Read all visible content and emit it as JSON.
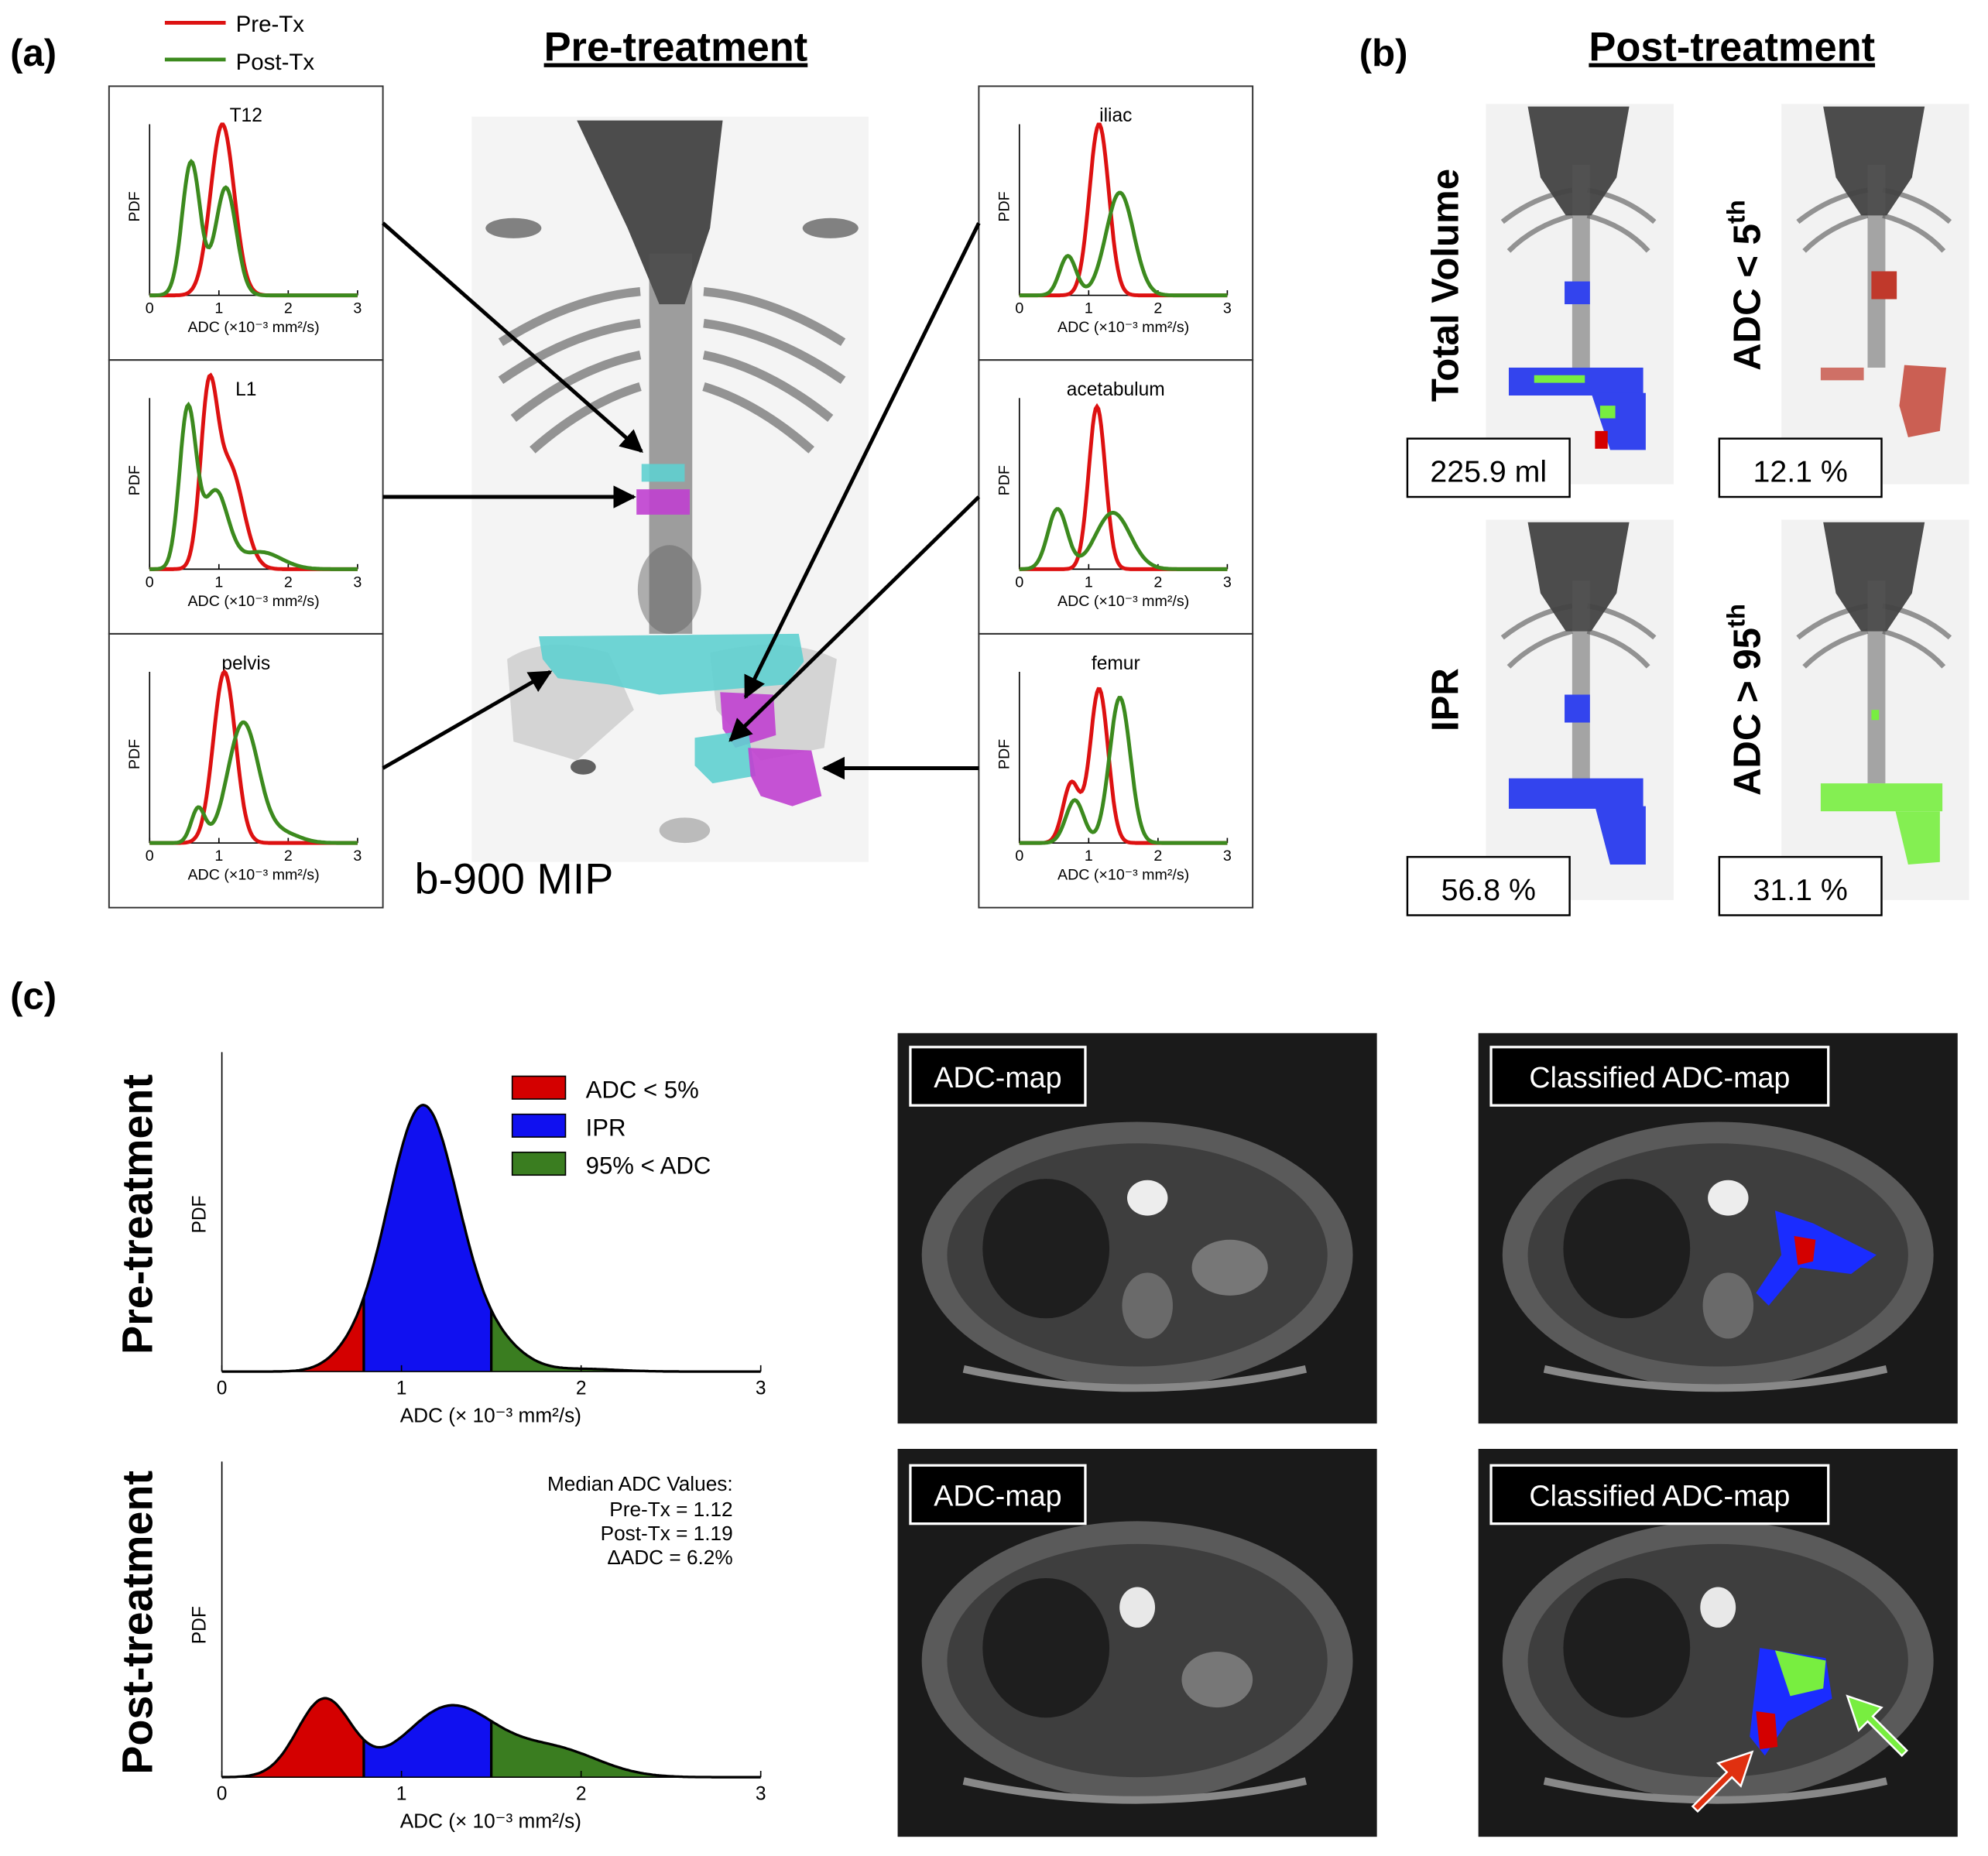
{
  "colors": {
    "pre": "#dd1111",
    "post": "#3c8a1e",
    "ipr": "#1010f0",
    "low": "#d40000",
    "high": "#3a7d20",
    "cyan": "#5fd0d0",
    "magenta": "#c040d0",
    "lime": "#78ee40"
  },
  "panel_labels": {
    "a": "(a)",
    "b": "(b)",
    "c": "(c)"
  },
  "headings": {
    "pre": "Pre-treatment",
    "post": "Post-treatment"
  },
  "legend_a": {
    "pre": "Pre-Tx",
    "post": "Post-Tx"
  },
  "axis": {
    "pdf": "PDF",
    "adc_small": "ADC (×10⁻³ mm²/s)",
    "adc_large": "ADC (× 10⁻³ mm²/s)",
    "ticks": [
      "0",
      "1",
      "2",
      "3"
    ]
  },
  "mip_label": "b-900 MIP",
  "panel_b": {
    "total_volume_label": "Total Volume",
    "total_volume_value": "225.9 ml",
    "adc_low_label": "ADC < 5",
    "adc_low_sup": "th",
    "adc_low_value": "12.1 %",
    "ipr_label": "IPR",
    "ipr_value": "56.8 %",
    "adc_high_label": "ADC > 95",
    "adc_high_sup": "th",
    "adc_high_value": "31.1 %"
  },
  "panel_c": {
    "row_pre": "Pre-treatment",
    "row_post": "Post-treatment",
    "legend": [
      "ADC < 5%",
      "IPR",
      "95% < ADC"
    ],
    "median_title": "Median ADC Values:",
    "median_pre": "Pre-Tx = 1.12",
    "median_post": "Post-Tx = 1.19",
    "median_delta": "ΔADC = 6.2%",
    "tag_adc": "ADC-map",
    "tag_classified": "Classified ADC-map"
  },
  "chart_data": [
    {
      "type": "line",
      "title": "T12",
      "xlabel": "ADC (×10⁻³ mm²/s)",
      "ylabel": "PDF",
      "xlim": [
        0,
        3
      ],
      "series": [
        {
          "name": "Pre-Tx",
          "peaks": [
            [
              1.05,
              0.17,
              1.0
            ]
          ]
        },
        {
          "name": "Post-Tx",
          "peaks": [
            [
              0.6,
              0.13,
              0.78
            ],
            [
              1.1,
              0.15,
              0.63
            ]
          ]
        }
      ]
    },
    {
      "type": "line",
      "title": "L1",
      "xlabel": "ADC (×10⁻³ mm²/s)",
      "ylabel": "PDF",
      "xlim": [
        0,
        3
      ],
      "series": [
        {
          "name": "Pre-Tx",
          "peaks": [
            [
              0.85,
              0.12,
              0.92
            ],
            [
              1.15,
              0.2,
              0.6
            ]
          ]
        },
        {
          "name": "Post-Tx",
          "peaks": [
            [
              0.55,
              0.12,
              0.92
            ],
            [
              0.95,
              0.18,
              0.45
            ],
            [
              1.6,
              0.3,
              0.1
            ]
          ]
        }
      ]
    },
    {
      "type": "line",
      "title": "pelvis",
      "xlabel": "ADC (×10⁻³ mm²/s)",
      "ylabel": "PDF",
      "xlim": [
        0,
        3
      ],
      "series": [
        {
          "name": "Pre-Tx",
          "peaks": [
            [
              1.08,
              0.16,
              1.0
            ]
          ]
        },
        {
          "name": "Post-Tx",
          "peaks": [
            [
              0.7,
              0.1,
              0.2
            ],
            [
              1.35,
              0.22,
              0.7
            ],
            [
              1.9,
              0.25,
              0.06
            ]
          ]
        }
      ]
    },
    {
      "type": "line",
      "title": "iliac",
      "xlabel": "ADC (×10⁻³ mm²/s)",
      "ylabel": "PDF",
      "xlim": [
        0,
        3
      ],
      "series": [
        {
          "name": "Pre-Tx",
          "peaks": [
            [
              1.15,
              0.14,
              1.0
            ]
          ]
        },
        {
          "name": "Post-Tx",
          "peaks": [
            [
              0.7,
              0.12,
              0.23
            ],
            [
              1.45,
              0.2,
              0.6
            ]
          ]
        }
      ]
    },
    {
      "type": "line",
      "title": "acetabulum",
      "xlabel": "ADC (×10⁻³ mm²/s)",
      "ylabel": "PDF",
      "xlim": [
        0,
        3
      ],
      "series": [
        {
          "name": "Pre-Tx",
          "peaks": [
            [
              1.12,
              0.12,
              0.95
            ]
          ]
        },
        {
          "name": "Post-Tx",
          "peaks": [
            [
              0.55,
              0.14,
              0.35
            ],
            [
              1.35,
              0.25,
              0.33
            ]
          ]
        }
      ]
    },
    {
      "type": "line",
      "title": "femur",
      "xlabel": "ADC (×10⁻³ mm²/s)",
      "ylabel": "PDF",
      "xlim": [
        0,
        3
      ],
      "series": [
        {
          "name": "Pre-Tx",
          "peaks": [
            [
              0.75,
              0.12,
              0.35
            ],
            [
              1.15,
              0.13,
              0.9
            ]
          ]
        },
        {
          "name": "Post-Tx",
          "peaks": [
            [
              0.8,
              0.13,
              0.25
            ],
            [
              1.45,
              0.15,
              0.85
            ]
          ]
        }
      ]
    },
    {
      "type": "area",
      "title": "Pre-treatment",
      "xlabel": "ADC (× 10⁻³ mm²/s)",
      "ylabel": "PDF",
      "xlim": [
        0,
        3
      ],
      "thresholds": [
        0.79,
        1.5
      ],
      "series": [
        {
          "name": "Pre-Tx",
          "peaks": [
            [
              1.12,
              0.2,
              1.0
            ],
            [
              1.55,
              0.15,
              0.07
            ],
            [
              0.7,
              0.12,
              0.03
            ],
            [
              2.0,
              0.2,
              0.01
            ]
          ]
        }
      ]
    },
    {
      "type": "area",
      "title": "Post-treatment",
      "xlabel": "ADC (× 10⁻³ mm²/s)",
      "ylabel": "PDF",
      "xlim": [
        0,
        3
      ],
      "thresholds": [
        0.79,
        1.5
      ],
      "series": [
        {
          "name": "Post-Tx",
          "peaks": [
            [
              0.57,
              0.15,
              0.51
            ],
            [
              1.27,
              0.25,
              0.46
            ],
            [
              1.85,
              0.25,
              0.18
            ]
          ]
        }
      ]
    }
  ]
}
